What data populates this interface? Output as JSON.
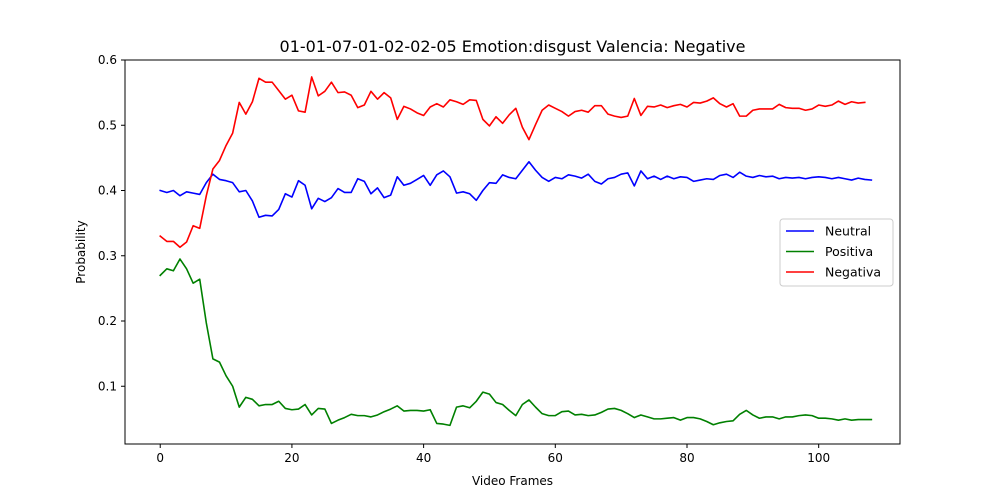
{
  "chart_data": {
    "type": "line",
    "title": "01-01-07-01-02-02-05 Emotion:disgust Valencia: Negative",
    "xlabel": "Video Frames",
    "ylabel": "Probability",
    "xlim": [
      -5.35,
      112.35
    ],
    "ylim": [
      0.0115,
      0.6
    ],
    "x_ticks": [
      0,
      20,
      40,
      60,
      80,
      100
    ],
    "y_ticks": [
      0.1,
      0.2,
      0.3,
      0.4,
      0.5,
      0.6
    ],
    "x_tick_labels": [
      "0",
      "20",
      "40",
      "60",
      "80",
      "100"
    ],
    "y_tick_labels": [
      "0.1",
      "0.2",
      "0.3",
      "0.4",
      "0.5",
      "0.6"
    ],
    "grid": false,
    "legend_position": "center-right",
    "series": [
      {
        "name": "Neutral",
        "color": "#0000ff",
        "values": [
          0.4,
          0.397,
          0.4,
          0.392,
          0.398,
          0.396,
          0.394,
          0.412,
          0.425,
          0.417,
          0.415,
          0.412,
          0.398,
          0.4,
          0.384,
          0.359,
          0.362,
          0.361,
          0.371,
          0.395,
          0.39,
          0.415,
          0.408,
          0.372,
          0.388,
          0.383,
          0.389,
          0.403,
          0.397,
          0.397,
          0.418,
          0.414,
          0.395,
          0.404,
          0.389,
          0.393,
          0.421,
          0.408,
          0.411,
          0.417,
          0.423,
          0.408,
          0.424,
          0.43,
          0.421,
          0.396,
          0.398,
          0.395,
          0.385,
          0.4,
          0.412,
          0.411,
          0.424,
          0.42,
          0.418,
          0.431,
          0.444,
          0.431,
          0.42,
          0.414,
          0.42,
          0.418,
          0.424,
          0.422,
          0.419,
          0.425,
          0.414,
          0.41,
          0.418,
          0.42,
          0.425,
          0.427,
          0.407,
          0.43,
          0.418,
          0.422,
          0.417,
          0.422,
          0.418,
          0.421,
          0.42,
          0.414,
          0.416,
          0.418,
          0.417,
          0.423,
          0.425,
          0.42,
          0.428,
          0.422,
          0.42,
          0.423,
          0.421,
          0.422,
          0.418,
          0.42,
          0.419,
          0.42,
          0.418,
          0.42,
          0.421,
          0.42,
          0.418,
          0.42,
          0.418,
          0.416,
          0.419,
          0.417,
          0.416
        ]
      },
      {
        "name": "Positiva",
        "color": "#008000",
        "values": [
          0.27,
          0.28,
          0.277,
          0.295,
          0.28,
          0.258,
          0.264,
          0.197,
          0.142,
          0.137,
          0.116,
          0.1,
          0.068,
          0.083,
          0.08,
          0.07,
          0.072,
          0.072,
          0.077,
          0.066,
          0.064,
          0.065,
          0.072,
          0.056,
          0.066,
          0.065,
          0.043,
          0.048,
          0.052,
          0.057,
          0.055,
          0.055,
          0.053,
          0.056,
          0.061,
          0.065,
          0.07,
          0.062,
          0.063,
          0.063,
          0.062,
          0.064,
          0.043,
          0.042,
          0.04,
          0.068,
          0.07,
          0.067,
          0.077,
          0.091,
          0.088,
          0.075,
          0.072,
          0.063,
          0.055,
          0.072,
          0.079,
          0.068,
          0.058,
          0.055,
          0.055,
          0.061,
          0.062,
          0.056,
          0.057,
          0.055,
          0.056,
          0.06,
          0.065,
          0.066,
          0.063,
          0.058,
          0.052,
          0.056,
          0.053,
          0.05,
          0.05,
          0.051,
          0.052,
          0.048,
          0.052,
          0.052,
          0.05,
          0.046,
          0.041,
          0.044,
          0.046,
          0.047,
          0.057,
          0.063,
          0.056,
          0.051,
          0.053,
          0.053,
          0.05,
          0.053,
          0.053,
          0.055,
          0.056,
          0.055,
          0.051,
          0.051,
          0.05,
          0.048,
          0.05,
          0.048,
          0.049,
          0.049,
          0.049
        ]
      },
      {
        "name": "Negativa",
        "color": "#ff0000",
        "values": [
          0.33,
          0.322,
          0.322,
          0.313,
          0.321,
          0.346,
          0.342,
          0.392,
          0.433,
          0.446,
          0.469,
          0.488,
          0.535,
          0.517,
          0.536,
          0.572,
          0.566,
          0.566,
          0.553,
          0.54,
          0.546,
          0.522,
          0.52,
          0.574,
          0.545,
          0.552,
          0.566,
          0.55,
          0.551,
          0.546,
          0.527,
          0.531,
          0.552,
          0.54,
          0.55,
          0.542,
          0.509,
          0.529,
          0.525,
          0.519,
          0.515,
          0.528,
          0.533,
          0.528,
          0.539,
          0.536,
          0.532,
          0.539,
          0.538,
          0.509,
          0.499,
          0.513,
          0.503,
          0.516,
          0.526,
          0.497,
          0.478,
          0.501,
          0.523,
          0.531,
          0.526,
          0.521,
          0.514,
          0.521,
          0.523,
          0.52,
          0.53,
          0.53,
          0.517,
          0.514,
          0.512,
          0.514,
          0.541,
          0.515,
          0.529,
          0.528,
          0.531,
          0.527,
          0.53,
          0.532,
          0.528,
          0.535,
          0.534,
          0.537,
          0.542,
          0.533,
          0.528,
          0.533,
          0.514,
          0.514,
          0.523,
          0.525,
          0.525,
          0.525,
          0.532,
          0.527,
          0.526,
          0.526,
          0.523,
          0.525,
          0.531,
          0.529,
          0.531,
          0.537,
          0.532,
          0.536,
          0.534,
          0.535
        ]
      }
    ]
  }
}
